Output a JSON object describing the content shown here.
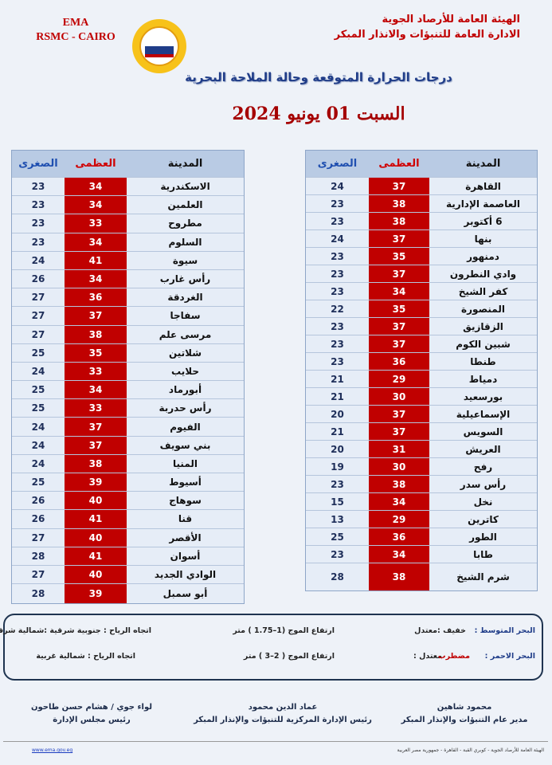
{
  "header": {
    "left_lines": [
      "EMA",
      "RSMC - CAIRO"
    ],
    "right_lines": [
      "الهيئة العامة للأرصاد الجوية",
      "الادارة العامة للتنبؤات والانذار المبكر"
    ],
    "title": "درجات الحرارة المتوقعة وحالة الملاحة البحرية",
    "date": "السبت 01 يونيو 2024"
  },
  "right_table": {
    "columns": [
      "المدينة",
      "العظمى",
      "الصغرى"
    ],
    "rows": [
      [
        "القاهرة",
        37,
        24
      ],
      [
        "العاصمة الإدارية",
        38,
        23
      ],
      [
        "6 أكتوبر",
        38,
        23
      ],
      [
        "بنها",
        37,
        24
      ],
      [
        "دمنهور",
        35,
        23
      ],
      [
        "وادي النطرون",
        37,
        23
      ],
      [
        "كفر الشيخ",
        34,
        23
      ],
      [
        "المنصورة",
        35,
        22
      ],
      [
        "الزقازيق",
        37,
        23
      ],
      [
        "شبين الكوم",
        37,
        23
      ],
      [
        "طنطا",
        36,
        23
      ],
      [
        "دمياط",
        29,
        21
      ],
      [
        "بورسعيد",
        30,
        21
      ],
      [
        "الإسماعيلية",
        37,
        20
      ],
      [
        "السويس",
        37,
        21
      ],
      [
        "العريش",
        31,
        20
      ],
      [
        "رفح",
        30,
        19
      ],
      [
        "رأس سدر",
        38,
        23
      ],
      [
        "نخل",
        34,
        15
      ],
      [
        "كاترين",
        29,
        13
      ],
      [
        "الطور",
        36,
        25
      ],
      [
        "طابا",
        34,
        23
      ],
      [
        "شرم الشيخ",
        38,
        28
      ]
    ]
  },
  "left_table": {
    "columns": [
      "المدينة",
      "العظمى",
      "الصغرى"
    ],
    "rows": [
      [
        "الاسكندرية",
        34,
        23
      ],
      [
        "العلمين",
        34,
        23
      ],
      [
        "مطروح",
        33,
        23
      ],
      [
        "السلوم",
        34,
        23
      ],
      [
        "سيوة",
        41,
        24
      ],
      [
        "رأس غارب",
        34,
        26
      ],
      [
        "الغردقة",
        36,
        27
      ],
      [
        "سفاجا",
        37,
        27
      ],
      [
        "مرسى علم",
        38,
        27
      ],
      [
        "شلاتين",
        35,
        25
      ],
      [
        "حلايب",
        33,
        24
      ],
      [
        "أبورماد",
        34,
        25
      ],
      [
        "رأس حدربة",
        33,
        25
      ],
      [
        "الفيوم",
        37,
        24
      ],
      [
        "بني سويف",
        37,
        24
      ],
      [
        "المنيا",
        38,
        24
      ],
      [
        "أسيوط",
        39,
        25
      ],
      [
        "سوهاج",
        40,
        26
      ],
      [
        "قنا",
        41,
        26
      ],
      [
        "الأقصر",
        40,
        27
      ],
      [
        "أسوان",
        41,
        28
      ],
      [
        "الوادي الجديد",
        40,
        27
      ],
      [
        "أبو سمبل",
        39,
        28
      ]
    ]
  },
  "sea": {
    "rows": [
      {
        "sea": "البحر المتوسط :",
        "state": "خفيف :معتدل",
        "state_extra": "",
        "waves": "ارتفاع الموج (1–1.75 ) متر",
        "wind": "اتجاه الرياح : جنوبية شرقية :شمالية شرقية"
      },
      {
        "sea": "البحر الاحمر :",
        "state": "معتدل :",
        "state_extra": "مضطرب",
        "waves": "ارتفاع الموج ( 2–3 ) متر",
        "wind": "اتجاه الرياح : شمالية غربية"
      }
    ]
  },
  "signatures": [
    {
      "name": "محمود شاهين",
      "role": "مدير عام التنبؤات والإنذار المبكر"
    },
    {
      "name": "عماد الدين محمود",
      "role": "رئيس الإدارة المركزية للتنبؤات والإنذار المبكر"
    },
    {
      "name": "لواء جوي / هشام حسن طاحون",
      "role": "رئيس مجلس الإدارة"
    }
  ],
  "footer": {
    "text": "الهيئة العامة للأرصاد الجوية - كوبري القبة - القاهرة - جمهورية مصر العربية",
    "link": "www.ema.gov.eg"
  }
}
